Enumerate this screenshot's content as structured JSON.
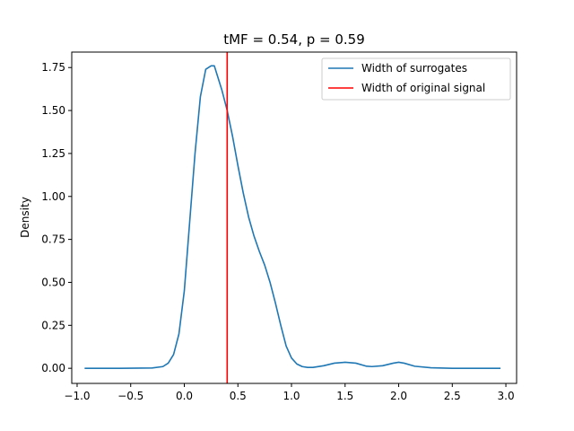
{
  "chart_data": {
    "type": "line",
    "title": "tMF = 0.54, p = 0.59",
    "xlabel": "",
    "ylabel": "Density",
    "xlim": [
      -1.05,
      3.1
    ],
    "ylim": [
      -0.088,
      1.84
    ],
    "x_ticks": [
      -1.0,
      -0.5,
      0.0,
      0.5,
      1.0,
      1.5,
      2.0,
      2.5,
      3.0
    ],
    "x_tick_labels": [
      "−1.0",
      "−0.5",
      "0.0",
      "0.5",
      "1.0",
      "1.5",
      "2.0",
      "2.5",
      "3.0"
    ],
    "y_ticks": [
      0.0,
      0.25,
      0.5,
      0.75,
      1.0,
      1.25,
      1.5,
      1.75
    ],
    "y_tick_labels": [
      "0.00",
      "0.25",
      "0.50",
      "0.75",
      "1.00",
      "1.25",
      "1.50",
      "1.75"
    ],
    "grid": false,
    "legend_position": "top-right",
    "series": [
      {
        "name": "Width of surrogates",
        "color": "#1f77b4",
        "kind": "line",
        "x": [
          -0.93,
          -0.6,
          -0.3,
          -0.2,
          -0.15,
          -0.1,
          -0.05,
          0.0,
          0.05,
          0.1,
          0.15,
          0.2,
          0.25,
          0.28,
          0.3,
          0.35,
          0.4,
          0.45,
          0.5,
          0.55,
          0.6,
          0.65,
          0.7,
          0.75,
          0.8,
          0.85,
          0.9,
          0.95,
          1.0,
          1.05,
          1.1,
          1.15,
          1.2,
          1.3,
          1.4,
          1.5,
          1.6,
          1.7,
          1.75,
          1.85,
          1.95,
          2.0,
          2.05,
          2.15,
          2.3,
          2.5,
          2.95
        ],
        "y": [
          0.0,
          0.0,
          0.002,
          0.01,
          0.03,
          0.08,
          0.2,
          0.45,
          0.85,
          1.25,
          1.58,
          1.74,
          1.76,
          1.76,
          1.72,
          1.62,
          1.5,
          1.35,
          1.18,
          1.02,
          0.88,
          0.77,
          0.68,
          0.6,
          0.5,
          0.38,
          0.25,
          0.13,
          0.06,
          0.025,
          0.01,
          0.005,
          0.005,
          0.015,
          0.03,
          0.035,
          0.03,
          0.012,
          0.01,
          0.015,
          0.03,
          0.035,
          0.03,
          0.012,
          0.003,
          0.0,
          0.0
        ]
      },
      {
        "name": "Width of original signal",
        "color": "#ff0000",
        "kind": "vline",
        "x": 0.4
      }
    ]
  }
}
